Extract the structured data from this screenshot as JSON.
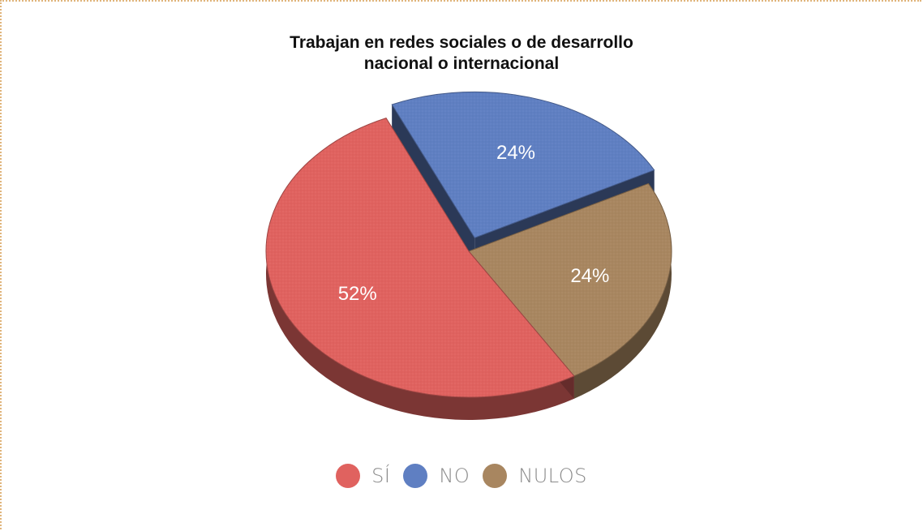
{
  "chart_data": {
    "type": "pie",
    "title": [
      "Trabajan en redes sociales o de desarrollo",
      "nacional o internacional"
    ],
    "categories": [
      "SÍ",
      "NO",
      "NULOS"
    ],
    "values": [
      52,
      24,
      24
    ],
    "labels": [
      "52%",
      "24%",
      "24%"
    ],
    "colors": [
      "#e0625f",
      "#5f7fc2",
      "#a88660"
    ],
    "legend_position": "bottom",
    "three_d": true
  }
}
